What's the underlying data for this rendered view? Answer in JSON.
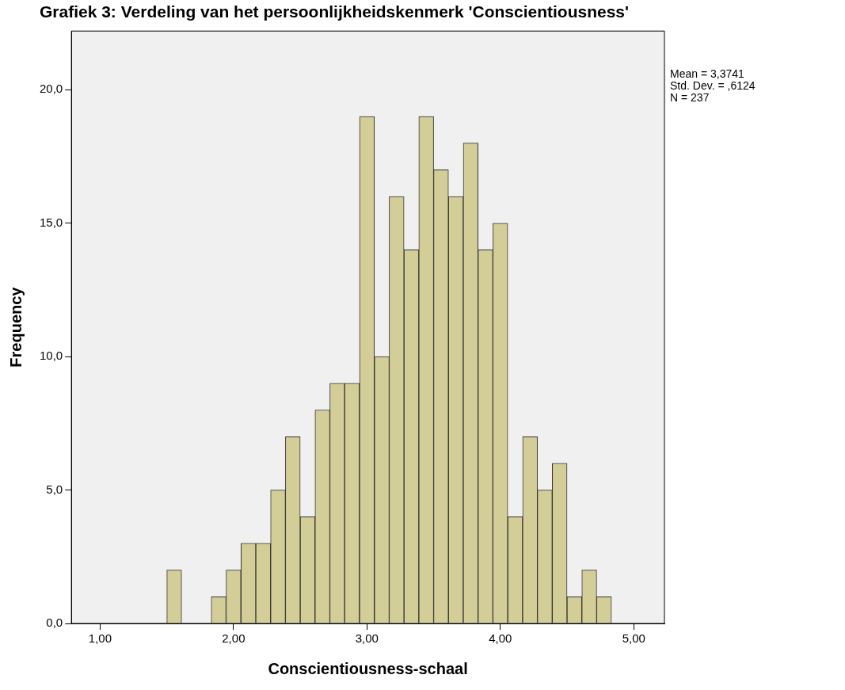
{
  "chart_data": {
    "type": "histogram",
    "title": "Grafiek 3: Verdeling van het persoonlijkheidskenmerk 'Conscientiousness'",
    "xlabel": "Conscientiousness-schaal",
    "ylabel": "Frequency",
    "bins": [
      1.5,
      1.611,
      1.722,
      1.833,
      1.944,
      2.056,
      2.167,
      2.278,
      2.389,
      2.5,
      2.611,
      2.722,
      2.833,
      2.944,
      3.056,
      3.167,
      3.278,
      3.389,
      3.5,
      3.611,
      3.722,
      3.833,
      3.944,
      4.056,
      4.167,
      4.278,
      4.389,
      4.5,
      4.611,
      4.722,
      4.833
    ],
    "values": [
      2,
      0,
      0,
      1,
      2,
      3,
      3,
      5,
      7,
      4,
      8,
      9,
      9,
      19,
      10,
      16,
      14,
      19,
      17,
      16,
      18,
      14,
      15,
      4,
      7,
      5,
      6,
      1,
      2,
      1
    ],
    "color": "#d3ce97",
    "xlim": [
      0.785,
      5.23
    ],
    "xticks": [
      {
        "value": 1,
        "label": "1,00"
      },
      {
        "value": 2,
        "label": "2,00"
      },
      {
        "value": 3,
        "label": "3,00"
      },
      {
        "value": 4,
        "label": "4,00"
      },
      {
        "value": 5,
        "label": "5,00"
      }
    ],
    "ylim": [
      0,
      22.2
    ],
    "yticks": [
      {
        "value": 0,
        "label": "0,0"
      },
      {
        "value": 5,
        "label": "5,0"
      },
      {
        "value": 10,
        "label": "10,0"
      },
      {
        "value": 15,
        "label": "15,0"
      },
      {
        "value": 20,
        "label": "20,0"
      }
    ],
    "grid": false,
    "legend": false,
    "annotations": [
      "Mean = 3,3741",
      "Std. Dev. = ,6124",
      "N = 237"
    ]
  }
}
